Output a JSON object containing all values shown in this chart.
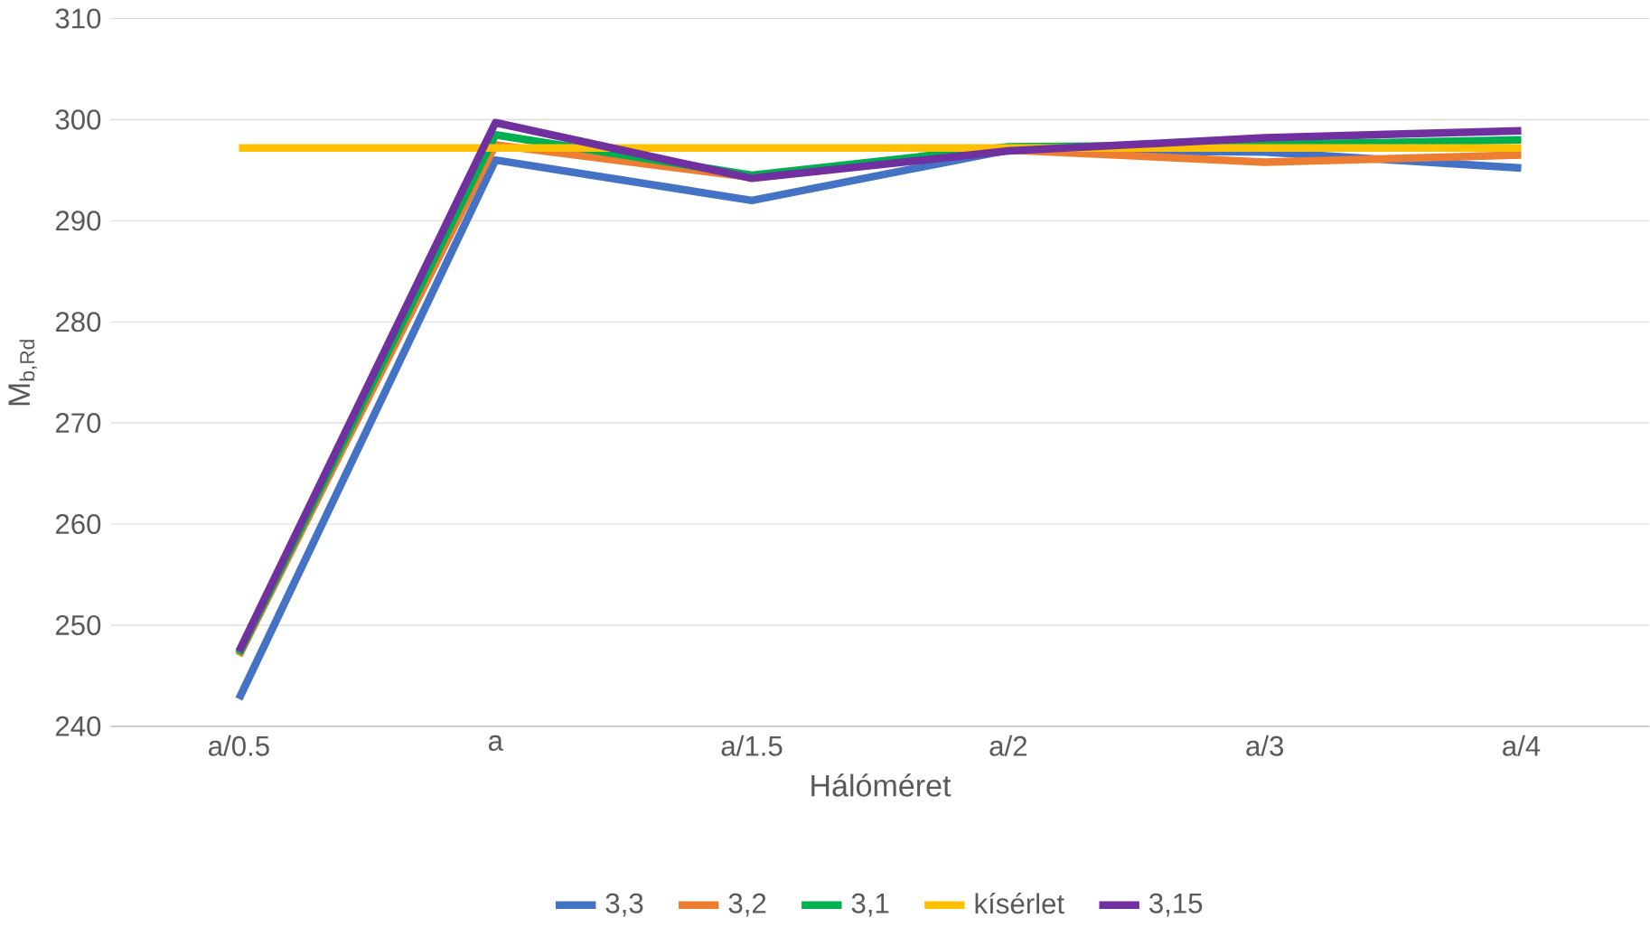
{
  "chart_data": {
    "type": "line",
    "xlabel": "Hálóméret",
    "ylabel": "M$_{b,Rd}$",
    "categories": [
      "a/0.5",
      "a",
      "a/1.5",
      "a/2",
      "a/3",
      "a/4"
    ],
    "series": [
      {
        "name": "3,3",
        "color": "#4472c4",
        "values": [
          242.7,
          296.0,
          292.0,
          297.0,
          296.8,
          295.2
        ]
      },
      {
        "name": "3,2",
        "color": "#ed7d31",
        "values": [
          247.0,
          297.5,
          294.3,
          297.0,
          295.8,
          296.5
        ]
      },
      {
        "name": "3,1",
        "color": "#00b050",
        "values": [
          247.2,
          298.5,
          294.5,
          297.3,
          297.5,
          298.0
        ]
      },
      {
        "name": "kísérlet",
        "color": "#ffc000",
        "values": [
          297.2,
          297.2,
          297.2,
          297.2,
          297.2,
          297.2
        ]
      },
      {
        "name": "3,15",
        "color": "#7030a0",
        "values": [
          247.4,
          299.7,
          294.2,
          296.9,
          298.2,
          298.9
        ]
      }
    ],
    "ylim": [
      240,
      310
    ],
    "yticks": [
      240,
      250,
      260,
      270,
      280,
      290,
      300,
      310
    ],
    "grid": "y",
    "legend": "bottom",
    "marker": "none",
    "line_style": "solid"
  }
}
